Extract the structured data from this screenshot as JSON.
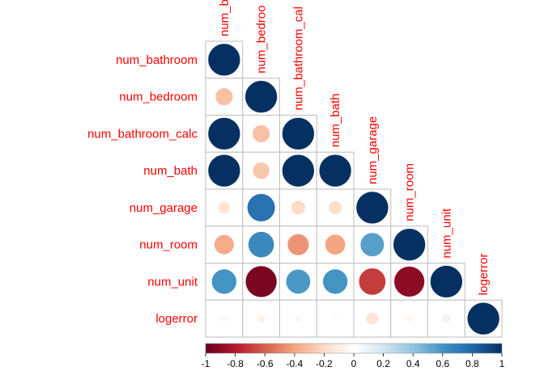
{
  "chart_data": {
    "type": "heatmap",
    "subtype": "correlation-circles-lower-triangle",
    "variables": [
      "num_bathroom",
      "num_bedroom",
      "num_bathroom_calc",
      "num_bath",
      "num_garage",
      "num_room",
      "num_unit",
      "logerror"
    ],
    "column_labels_as_shown": [
      "num_b",
      "num_bedroo",
      "num_bathroom_cal",
      "num_bath",
      "num_garage",
      "num_room",
      "num_unit",
      "logerror"
    ],
    "correlations": [
      [
        1.0
      ],
      [
        -0.3,
        1.0
      ],
      [
        1.0,
        -0.3,
        1.0
      ],
      [
        1.0,
        -0.28,
        1.0,
        1.0
      ],
      [
        -0.15,
        0.75,
        -0.2,
        -0.18,
        1.0
      ],
      [
        -0.38,
        0.65,
        -0.45,
        -0.4,
        0.55,
        1.0
      ],
      [
        0.6,
        -0.95,
        0.58,
        0.6,
        -0.7,
        -0.9,
        1.0
      ],
      [
        -0.05,
        -0.07,
        -0.05,
        -0.03,
        -0.15,
        -0.05,
        0.08,
        1.0
      ]
    ],
    "color_scale": {
      "min": -1,
      "max": 1,
      "ticks": [
        "-1",
        "-0.8",
        "-0.6",
        "-0.4",
        "-0.2",
        "0",
        "0.2",
        "0.4",
        "0.6",
        "0.8",
        "1"
      ],
      "stops": [
        "#67001f",
        "#b2182b",
        "#d6604d",
        "#f4a582",
        "#fddbc7",
        "#ffffff",
        "#d1e5f0",
        "#92c5de",
        "#4393c3",
        "#2166ac",
        "#053061"
      ]
    },
    "label_color": "#ff0000",
    "grid": true,
    "legend_placement": "bottom"
  }
}
